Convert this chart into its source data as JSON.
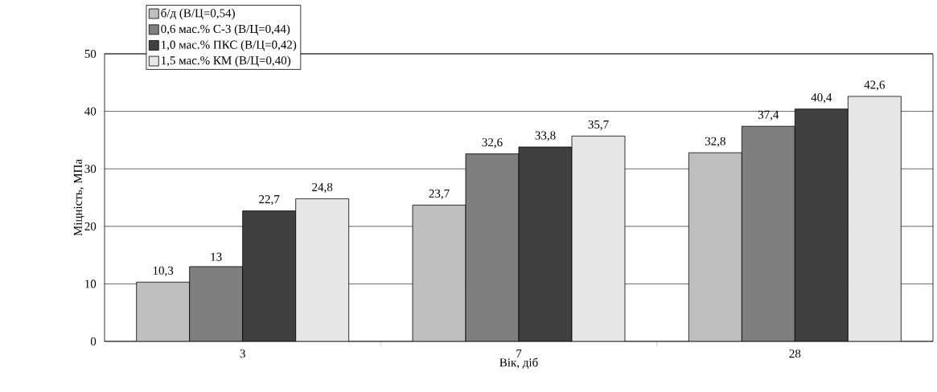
{
  "chart_data": {
    "type": "bar",
    "xlabel": "Вік, діб",
    "ylabel": "Міцність, МПа",
    "categories": [
      "3",
      "7",
      "28"
    ],
    "series": [
      {
        "name": "б/д (В/Ц=0,54)",
        "color": "#bfbfbf",
        "values": [
          10.3,
          23.7,
          32.8
        ],
        "value_labels": [
          "10,3",
          "23,7",
          "32,8"
        ]
      },
      {
        "name": "0,6 мас.% С-3 (В/Ц=0,44)",
        "color": "#7f7f7f",
        "values": [
          13,
          32.6,
          37.4
        ],
        "value_labels": [
          "13",
          "32,6",
          "37,4"
        ]
      },
      {
        "name": "1,0 мас.% ПКС (В/Ц=0,42)",
        "color": "#404040",
        "values": [
          22.7,
          33.8,
          40.4
        ],
        "value_labels": [
          "22,7",
          "33,8",
          "40,4"
        ]
      },
      {
        "name": "1,5 мас.% КМ (В/Ц=0,40)",
        "color": "#e6e6e6",
        "values": [
          24.8,
          35.7,
          42.6
        ],
        "value_labels": [
          "24,8",
          "35,7",
          "42,6"
        ]
      }
    ],
    "ylim": [
      0,
      50
    ],
    "yticks": [
      0,
      10,
      20,
      30,
      40,
      50
    ],
    "grid": "y",
    "legend": "top left"
  }
}
